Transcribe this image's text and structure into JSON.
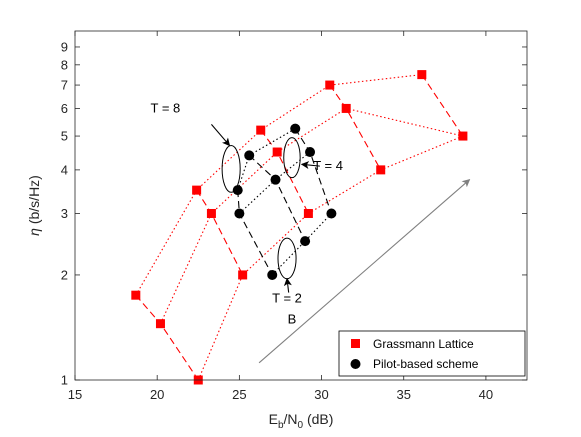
{
  "chart_data": {
    "type": "scatter",
    "xlabel": {
      "main": "E",
      "sub1": "b",
      "mid": "/N",
      "sub2": "0",
      "tail": " (dB)"
    },
    "ylabel": {
      "eta": "η",
      "rest": " (b/s/Hz)"
    },
    "xlim": [
      15,
      42.5
    ],
    "ylim": [
      1,
      10
    ],
    "yscale": "log",
    "xticks": [
      15,
      20,
      25,
      30,
      35,
      40
    ],
    "yticks": [
      1,
      2,
      3,
      4,
      5,
      6,
      7,
      8,
      9
    ],
    "grid": false,
    "legend_position": "bottom-right",
    "colors": {
      "grassmann": "#ff0000",
      "pilot": "#000000",
      "arrow": "#808080"
    },
    "series": [
      {
        "name": "Grassmann Lattice",
        "marker": "square",
        "color": "#ff0000",
        "points": [
          {
            "x": 18.7,
            "y": 1.75
          },
          {
            "x": 22.4,
            "y": 3.5
          },
          {
            "x": 26.3,
            "y": 5.2
          },
          {
            "x": 30.5,
            "y": 7.0
          },
          {
            "x": 36.1,
            "y": 7.5
          },
          {
            "x": 20.2,
            "y": 1.45
          },
          {
            "x": 23.3,
            "y": 3.0
          },
          {
            "x": 27.3,
            "y": 4.5
          },
          {
            "x": 31.5,
            "y": 6.0
          },
          {
            "x": 38.6,
            "y": 5.0
          },
          {
            "x": 22.5,
            "y": 1.0
          },
          {
            "x": 25.2,
            "y": 2.0
          },
          {
            "x": 29.2,
            "y": 3.0
          },
          {
            "x": 33.6,
            "y": 4.0
          }
        ]
      },
      {
        "name": "Pilot-based scheme",
        "marker": "circle",
        "color": "#000000",
        "points": [
          {
            "x": 24.9,
            "y": 3.5
          },
          {
            "x": 25.6,
            "y": 4.4
          },
          {
            "x": 28.4,
            "y": 5.25
          },
          {
            "x": 25.0,
            "y": 3.0
          },
          {
            "x": 27.2,
            "y": 3.75
          },
          {
            "x": 29.3,
            "y": 4.5
          },
          {
            "x": 27.0,
            "y": 2.0
          },
          {
            "x": 29.0,
            "y": 2.5
          },
          {
            "x": 30.6,
            "y": 3.0
          }
        ]
      }
    ],
    "lines": [
      {
        "series": "Grassmann Lattice",
        "style": "dotted",
        "points": [
          [
            18.7,
            1.75
          ],
          [
            22.4,
            3.5
          ],
          [
            26.3,
            5.2
          ],
          [
            30.5,
            7.0
          ],
          [
            36.1,
            7.5
          ]
        ]
      },
      {
        "series": "Grassmann Lattice",
        "style": "dotted",
        "points": [
          [
            20.2,
            1.45
          ],
          [
            23.3,
            3.0
          ],
          [
            27.3,
            4.5
          ],
          [
            31.5,
            6.0
          ],
          [
            38.6,
            5.0
          ]
        ]
      },
      {
        "series": "Grassmann Lattice",
        "style": "dotted",
        "points": [
          [
            22.5,
            1.0
          ],
          [
            25.2,
            2.0
          ],
          [
            29.2,
            3.0
          ],
          [
            33.6,
            4.0
          ],
          [
            38.6,
            5.0
          ]
        ]
      },
      {
        "series": "Grassmann Lattice",
        "style": "dashed",
        "points": [
          [
            18.7,
            1.75
          ],
          [
            20.2,
            1.45
          ],
          [
            22.5,
            1.0
          ]
        ]
      },
      {
        "series": "Grassmann Lattice",
        "style": "dashed",
        "points": [
          [
            22.4,
            3.5
          ],
          [
            23.3,
            3.0
          ],
          [
            25.2,
            2.0
          ]
        ]
      },
      {
        "series": "Grassmann Lattice",
        "style": "dashed",
        "points": [
          [
            26.3,
            5.2
          ],
          [
            27.3,
            4.5
          ],
          [
            29.2,
            3.0
          ]
        ]
      },
      {
        "series": "Grassmann Lattice",
        "style": "dashed",
        "points": [
          [
            30.5,
            7.0
          ],
          [
            31.5,
            6.0
          ],
          [
            33.6,
            4.0
          ]
        ]
      },
      {
        "series": "Grassmann Lattice",
        "style": "dashed",
        "points": [
          [
            36.1,
            7.5
          ],
          [
            38.6,
            5.0
          ]
        ]
      },
      {
        "series": "Pilot-based scheme",
        "style": "dotted",
        "points": [
          [
            24.9,
            3.5
          ],
          [
            25.6,
            4.4
          ],
          [
            28.4,
            5.25
          ]
        ]
      },
      {
        "series": "Pilot-based scheme",
        "style": "dotted",
        "points": [
          [
            25.0,
            3.0
          ],
          [
            27.2,
            3.75
          ],
          [
            29.3,
            4.5
          ]
        ]
      },
      {
        "series": "Pilot-based scheme",
        "style": "dotted",
        "points": [
          [
            27.0,
            2.0
          ],
          [
            29.0,
            2.5
          ],
          [
            30.6,
            3.0
          ]
        ]
      },
      {
        "series": "Pilot-based scheme",
        "style": "dashed",
        "points": [
          [
            24.9,
            3.5
          ],
          [
            25.0,
            3.0
          ],
          [
            27.0,
            2.0
          ]
        ]
      },
      {
        "series": "Pilot-based scheme",
        "style": "dashed",
        "points": [
          [
            25.6,
            4.4
          ],
          [
            27.2,
            3.75
          ],
          [
            29.0,
            2.5
          ]
        ]
      },
      {
        "series": "Pilot-based scheme",
        "style": "dashed",
        "points": [
          [
            28.4,
            5.25
          ],
          [
            29.3,
            4.5
          ],
          [
            30.6,
            3.0
          ]
        ]
      }
    ],
    "annotations": [
      {
        "name": "t8",
        "text": "T = 8",
        "text_at": [
          20.5,
          5.85
        ],
        "ellipse_center": [
          24.5,
          4.0
        ],
        "ellipse_rx": 0.55,
        "ellipse_y": [
          3.45,
          4.7
        ],
        "arrow_from": [
          23.3,
          5.4
        ],
        "arrow_to": [
          24.4,
          4.7
        ]
      },
      {
        "name": "t4",
        "text": "T = 4",
        "text_at": [
          30.4,
          4.0
        ],
        "ellipse_center": [
          28.2,
          4.35
        ],
        "ellipse_rx": 0.5,
        "ellipse_y": [
          3.8,
          4.95
        ],
        "arrow_from": [
          29.9,
          4.1
        ],
        "arrow_to": [
          28.8,
          4.15
        ]
      },
      {
        "name": "t2",
        "text": "T = 2",
        "text_at": [
          27.9,
          1.67
        ],
        "ellipse_center": [
          27.9,
          2.22
        ],
        "ellipse_rx": 0.55,
        "ellipse_y": [
          1.95,
          2.55
        ],
        "arrow_from": [
          28.0,
          1.78
        ],
        "arrow_to": [
          27.9,
          1.95
        ]
      },
      {
        "name": "b",
        "text": "B",
        "text_at": [
          28.2,
          1.45
        ],
        "arrow_from": [
          26.2,
          1.12
        ],
        "arrow_to": [
          39.0,
          3.75
        ],
        "color": "#808080"
      }
    ]
  }
}
